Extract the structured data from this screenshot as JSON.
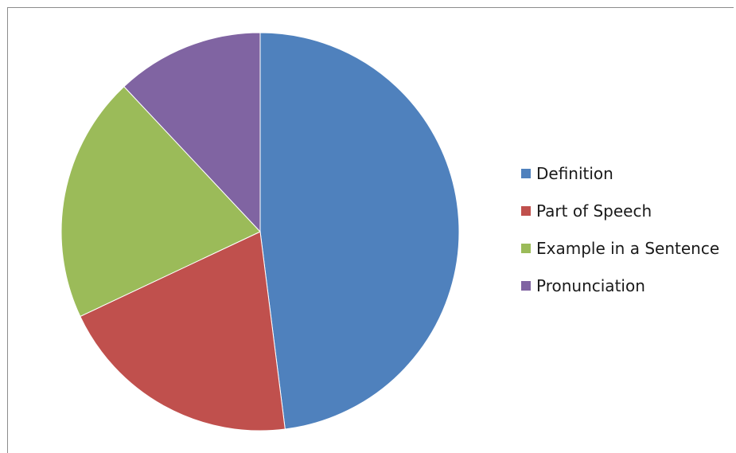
{
  "chart_data": {
    "type": "pie",
    "categories": [
      "Definition",
      "Part of Speech",
      "Example in a Sentence",
      "Pronunciation"
    ],
    "values": [
      48,
      20,
      20,
      12
    ],
    "colors": [
      "#4f81bd",
      "#c0504d",
      "#9bbb59",
      "#8064a2"
    ],
    "start": "12 o'clock",
    "direction": "clockwise",
    "legend_position": "right"
  }
}
